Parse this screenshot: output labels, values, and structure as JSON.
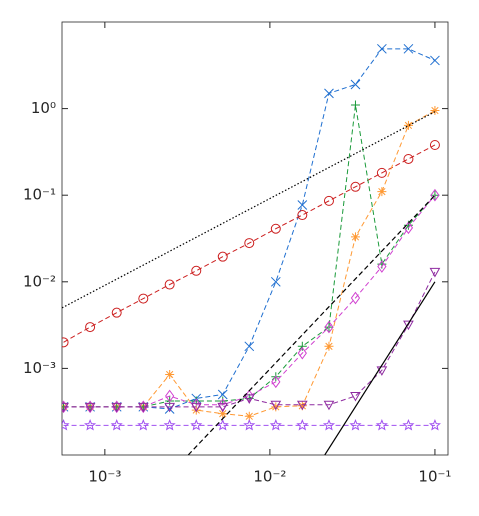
{
  "chart_data": {
    "type": "line",
    "xscale": "log",
    "yscale": "log",
    "x": [
      0.000562,
      0.000814,
      0.00118,
      0.00171,
      0.00247,
      0.00358,
      0.00518,
      0.0075,
      0.01086,
      0.01572,
      0.0228,
      0.033,
      0.0477,
      0.0691,
      0.1
    ],
    "xlim": [
      0.00055,
      0.12
    ],
    "ylim": [
      0.0001,
      10
    ],
    "xticks": [
      {
        "value": 0.001,
        "label": "10⁻³"
      },
      {
        "value": 0.01,
        "label": "10⁻²"
      },
      {
        "value": 0.1,
        "label": "10⁻¹"
      }
    ],
    "yticks": [
      {
        "value": 0.001,
        "label": "10⁻³"
      },
      {
        "value": 0.01,
        "label": "10⁻²"
      },
      {
        "value": 0.1,
        "label": "10⁻¹"
      },
      {
        "value": 1,
        "label": "10⁰"
      }
    ],
    "series": [
      {
        "color": "#1f6fd0",
        "marker": "x",
        "style": "dash",
        "values": [
          0.00036,
          0.00036,
          0.00036,
          0.00036,
          0.00034,
          0.00045,
          0.0005,
          0.0018,
          0.01,
          0.077,
          1.5,
          1.9,
          4.9,
          4.9,
          3.6
        ]
      },
      {
        "color": "#cc1f1f",
        "marker": "o",
        "style": "dash",
        "values": [
          0.002,
          0.003,
          0.0044,
          0.0064,
          0.0093,
          0.0134,
          0.0195,
          0.028,
          0.041,
          0.059,
          0.086,
          0.125,
          0.181,
          0.262,
          0.38
        ]
      },
      {
        "color": "#ff9933",
        "marker": "*",
        "style": "dash",
        "values": [
          0.00036,
          0.00036,
          0.00036,
          0.00036,
          0.00085,
          0.00033,
          0.0003,
          0.00028,
          0.00036,
          0.00037,
          0.0018,
          0.033,
          0.11,
          0.64,
          0.95
        ]
      },
      {
        "color": "#1a9a3a",
        "marker": "+",
        "style": "dash",
        "values": [
          0.00036,
          0.00036,
          0.00036,
          0.00036,
          0.00042,
          0.00042,
          0.00042,
          0.00045,
          0.0008,
          0.0018,
          0.003,
          1.1,
          0.016,
          0.045,
          0.1
        ]
      },
      {
        "color": "#d040d0",
        "marker": "d",
        "style": "dash",
        "values": [
          0.00036,
          0.00036,
          0.00036,
          0.00036,
          0.00048,
          0.00038,
          0.00038,
          0.00048,
          0.0007,
          0.0015,
          0.003,
          0.0065,
          0.015,
          0.042,
          0.1
        ]
      },
      {
        "color": "#8e2aa0",
        "marker": "v",
        "style": "dash",
        "values": [
          0.00036,
          0.00036,
          0.00036,
          0.00036,
          0.00036,
          0.00036,
          0.00036,
          0.00045,
          0.00038,
          0.00038,
          0.00038,
          0.00048,
          0.00095,
          0.0032,
          0.013
        ]
      },
      {
        "color": "#a050f0",
        "marker": "p",
        "style": "dash",
        "values": [
          0.00022,
          0.00022,
          0.00022,
          0.00022,
          0.00022,
          0.00022,
          0.00022,
          0.00022,
          0.00022,
          0.00022,
          0.00022,
          0.00022,
          0.00022,
          0.00022,
          0.00022
        ]
      },
      {
        "color": "#000000",
        "style": "dot",
        "x": [
          0.00055,
          0.1
        ],
        "values": [
          0.005,
          0.92
        ]
      },
      {
        "color": "#000000",
        "style": "dash",
        "x": [
          0.0032,
          0.1
        ],
        "values": [
          0.0001,
          0.1
        ]
      },
      {
        "color": "#000000",
        "style": "solid",
        "x": [
          0.0215,
          0.1
        ],
        "values": [
          0.0001,
          0.01
        ]
      }
    ]
  }
}
